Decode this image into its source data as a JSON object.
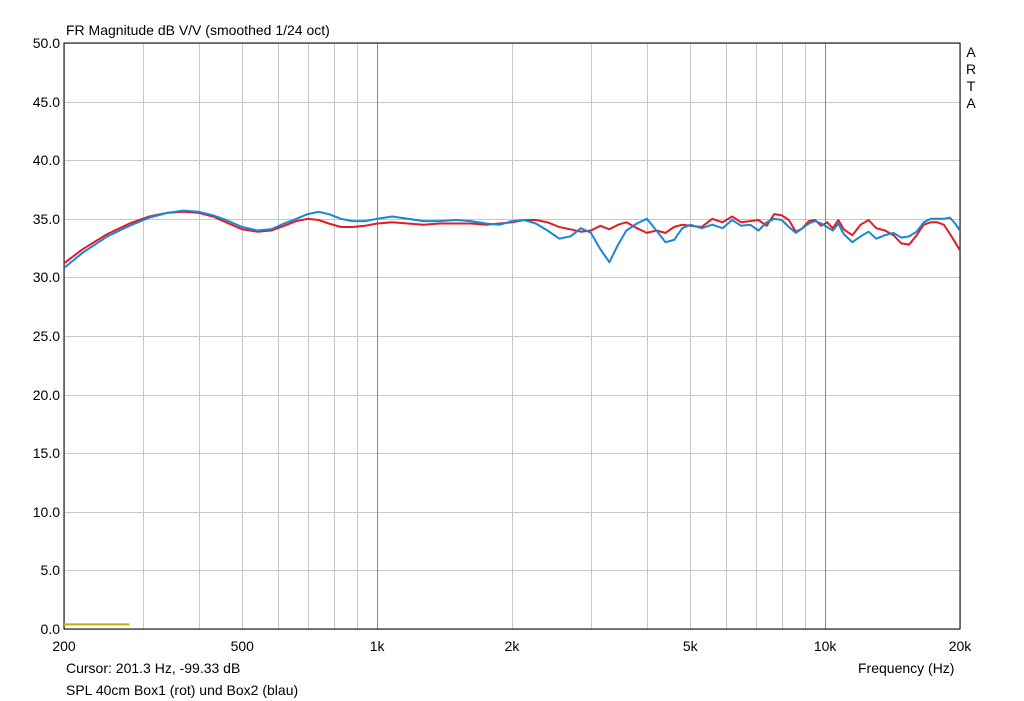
{
  "chart_data": {
    "type": "line",
    "title": "FR Magnitude dB V/V (smoothed 1/24 oct)",
    "xlabel": "Frequency (Hz)",
    "ylabel": "",
    "x_scale": "log",
    "xlim": [
      200,
      20000
    ],
    "ylim": [
      0,
      50
    ],
    "grid": true,
    "y_ticks": [
      "0.0",
      "5.0",
      "10.0",
      "15.0",
      "20.0",
      "25.0",
      "30.0",
      "35.0",
      "40.0",
      "45.0",
      "50.0"
    ],
    "x_tick_labels": [
      {
        "value": 200,
        "label": "200"
      },
      {
        "value": 500,
        "label": "500"
      },
      {
        "value": 1000,
        "label": "1k"
      },
      {
        "value": 2000,
        "label": "2k"
      },
      {
        "value": 5000,
        "label": "5k"
      },
      {
        "value": 10000,
        "label": "10k"
      },
      {
        "value": 20000,
        "label": "20k"
      }
    ],
    "x_minor_grid": [
      300,
      400,
      600,
      700,
      800,
      900,
      3000,
      4000,
      6000,
      7000,
      8000,
      9000
    ],
    "x_major_grid": [
      1000,
      10000
    ],
    "series": [
      {
        "name": "Box1 (rot)",
        "color": "#e31b23",
        "x": [
          200,
          220,
          250,
          280,
          310,
          340,
          370,
          400,
          430,
          460,
          500,
          540,
          580,
          620,
          660,
          700,
          740,
          780,
          830,
          880,
          940,
          1000,
          1080,
          1170,
          1270,
          1380,
          1500,
          1620,
          1750,
          1880,
          2000,
          2130,
          2260,
          2400,
          2550,
          2700,
          2850,
          3000,
          3150,
          3300,
          3450,
          3600,
          3800,
          4000,
          4200,
          4400,
          4600,
          4800,
          5000,
          5300,
          5600,
          5900,
          6200,
          6500,
          6800,
          7100,
          7400,
          7700,
          8000,
          8300,
          8600,
          8900,
          9200,
          9500,
          9800,
          10100,
          10400,
          10700,
          11000,
          11500,
          12000,
          12500,
          13000,
          13600,
          14200,
          14800,
          15400,
          16000,
          16600,
          17200,
          17800,
          18400,
          19000,
          19500,
          20000
        ],
        "y": [
          31.2,
          32.4,
          33.7,
          34.6,
          35.2,
          35.5,
          35.6,
          35.5,
          35.2,
          34.7,
          34.1,
          33.9,
          34.0,
          34.4,
          34.8,
          35.0,
          34.9,
          34.6,
          34.3,
          34.3,
          34.4,
          34.6,
          34.7,
          34.6,
          34.5,
          34.6,
          34.6,
          34.6,
          34.5,
          34.6,
          34.7,
          34.9,
          34.9,
          34.7,
          34.3,
          34.1,
          33.9,
          34.0,
          34.4,
          34.1,
          34.5,
          34.7,
          34.2,
          33.8,
          34.0,
          33.8,
          34.3,
          34.5,
          34.4,
          34.3,
          35.0,
          34.7,
          35.2,
          34.7,
          34.8,
          34.9,
          34.4,
          35.4,
          35.3,
          34.9,
          33.9,
          34.2,
          34.8,
          34.9,
          34.4,
          34.7,
          34.2,
          34.9,
          34.1,
          33.6,
          34.5,
          34.9,
          34.2,
          34.0,
          33.6,
          32.9,
          32.8,
          33.6,
          34.5,
          34.7,
          34.7,
          34.5,
          33.7,
          33.0,
          32.3
        ]
      },
      {
        "name": "Box2 (blau)",
        "color": "#1a86d8",
        "x": [
          200,
          220,
          250,
          280,
          310,
          340,
          370,
          400,
          430,
          460,
          500,
          540,
          580,
          620,
          660,
          700,
          740,
          780,
          830,
          880,
          940,
          1000,
          1080,
          1170,
          1270,
          1380,
          1500,
          1620,
          1750,
          1880,
          2000,
          2130,
          2260,
          2400,
          2550,
          2700,
          2850,
          3000,
          3150,
          3300,
          3450,
          3600,
          3800,
          4000,
          4200,
          4400,
          4600,
          4800,
          5000,
          5300,
          5600,
          5900,
          6200,
          6500,
          6800,
          7100,
          7400,
          7700,
          8000,
          8300,
          8600,
          8900,
          9200,
          9500,
          9800,
          10100,
          10400,
          10700,
          11000,
          11500,
          12000,
          12500,
          13000,
          13600,
          14200,
          14800,
          15400,
          16000,
          16600,
          17200,
          17800,
          18400,
          19000,
          19500,
          20000
        ],
        "y": [
          30.8,
          32.1,
          33.5,
          34.4,
          35.1,
          35.5,
          35.7,
          35.6,
          35.3,
          34.9,
          34.3,
          34.0,
          34.1,
          34.6,
          35.0,
          35.4,
          35.6,
          35.4,
          35.0,
          34.8,
          34.8,
          35.0,
          35.2,
          35.0,
          34.8,
          34.8,
          34.9,
          34.8,
          34.6,
          34.5,
          34.8,
          34.9,
          34.6,
          34.0,
          33.3,
          33.5,
          34.2,
          33.8,
          32.4,
          31.3,
          32.8,
          34.0,
          34.6,
          35.0,
          34.0,
          33.0,
          33.2,
          34.2,
          34.5,
          34.2,
          34.5,
          34.2,
          34.9,
          34.4,
          34.5,
          34.0,
          34.7,
          35.0,
          34.9,
          34.3,
          33.8,
          34.2,
          34.6,
          34.8,
          34.6,
          34.3,
          34.0,
          34.6,
          33.7,
          33.0,
          33.5,
          33.9,
          33.3,
          33.6,
          33.8,
          33.4,
          33.5,
          33.9,
          34.7,
          35.0,
          35.0,
          35.0,
          35.1,
          34.6,
          34.0
        ]
      }
    ],
    "marker_line": {
      "color": "#b9b300",
      "x_from": 200,
      "x_to": 280,
      "y": 0.05
    }
  },
  "footer": {
    "cursor_text": "Cursor: 201.3 Hz, -99.33 dB",
    "description": "SPL 40cm Box1 (rot) und Box2 (blau)"
  },
  "watermark": [
    "A",
    "R",
    "T",
    "A"
  ]
}
